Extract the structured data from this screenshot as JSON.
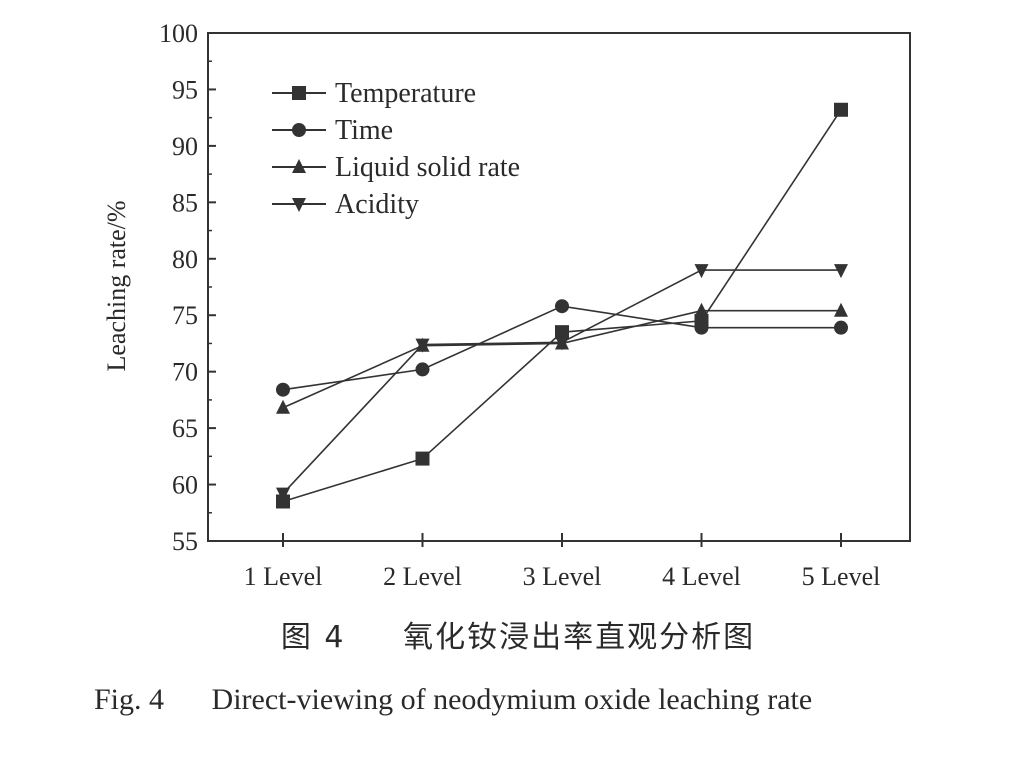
{
  "chart_data": {
    "type": "line",
    "title": "",
    "xlabel": "",
    "ylabel": "Leaching rate/%",
    "categories": [
      "1 Level",
      "2 Level",
      "3 Level",
      "4 Level",
      "5 Level"
    ],
    "ylim": [
      55,
      100
    ],
    "yticks": [
      55,
      60,
      65,
      70,
      75,
      80,
      85,
      90,
      95,
      100
    ],
    "grid": false,
    "legend_position": "top-left",
    "series": [
      {
        "name": "Temperature",
        "marker": "square",
        "values": [
          58.5,
          62.3,
          73.5,
          74.5,
          93.2
        ]
      },
      {
        "name": "Time",
        "marker": "circle",
        "values": [
          68.4,
          70.2,
          75.8,
          73.9,
          73.9
        ]
      },
      {
        "name": "Liquid solid rate",
        "marker": "triangle-up",
        "values": [
          66.8,
          72.3,
          72.5,
          75.4,
          75.4
        ]
      },
      {
        "name": "Acidity",
        "marker": "triangle-down",
        "values": [
          59.2,
          72.4,
          72.6,
          79.0,
          79.0
        ]
      }
    ],
    "line_color": "#333333"
  },
  "caption": {
    "cn_label": "图 4",
    "cn_text": "氧化钕浸出率直观分析图",
    "en_label": "Fig. 4",
    "en_text": "Direct-viewing of neodymium oxide leaching rate"
  }
}
